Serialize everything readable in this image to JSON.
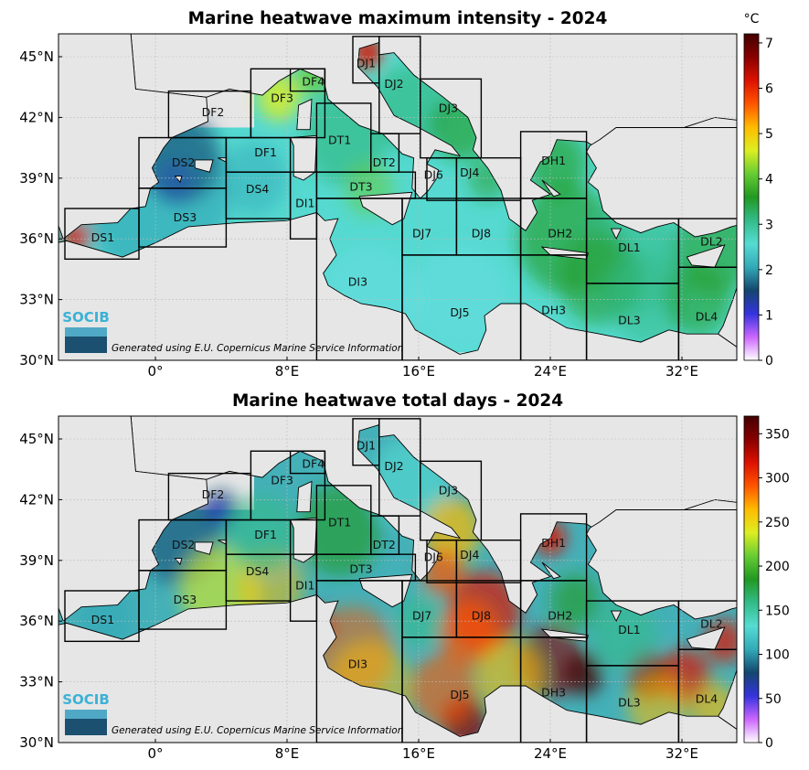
{
  "maps": [
    {
      "title": "Marine heatwave maximum intensity - 2024",
      "unit": "°C",
      "colorbar_ticks": [
        "7",
        "6",
        "5",
        "4",
        "3",
        "2",
        "1",
        "0"
      ],
      "colorbar_range": [
        0,
        7.2
      ],
      "colorbar_stops": [
        "#ffffff",
        "#cc66ff",
        "#3333dd",
        "#14466e",
        "#33aab8",
        "#55dcd2",
        "#33bb88",
        "#229922",
        "#66cc33",
        "#ddee22",
        "#ffbb00",
        "#ff5500",
        "#dd1100",
        "#880000",
        "#440000"
      ],
      "base_sea_color": "#55d9d0",
      "logo_text": "SOCIB",
      "credit": "Generated using E.U. Copernicus Marine Service Information",
      "xticks": [
        "0°",
        "8°E",
        "16°E",
        "24°E",
        "32°E"
      ],
      "yticks": [
        "45°N",
        "42°N",
        "39°N",
        "36°N",
        "33°N",
        "30°N"
      ],
      "regions": [
        "DS1",
        "DS2",
        "DS3",
        "DS4",
        "DF1",
        "DF2",
        "DF3",
        "DF4",
        "DI1",
        "DI3",
        "DT1",
        "DT2",
        "DT3",
        "DJ1",
        "DJ2",
        "DJ3",
        "DJ4",
        "DJ5",
        "DJ6",
        "DJ7",
        "DJ8",
        "DH1",
        "DH2",
        "DH3",
        "DL1",
        "DL2",
        "DL3",
        "DL4"
      ]
    },
    {
      "title": "Marine heatwave total days - 2024",
      "unit": "",
      "colorbar_ticks": [
        "350",
        "300",
        "250",
        "200",
        "150",
        "100",
        "50",
        "0"
      ],
      "colorbar_range": [
        0,
        370
      ],
      "colorbar_stops": [
        "#ffffff",
        "#cc66ff",
        "#3333dd",
        "#14466e",
        "#33aab8",
        "#55dcd2",
        "#33bb88",
        "#229922",
        "#66cc33",
        "#ddee22",
        "#ffbb00",
        "#ff5500",
        "#dd1100",
        "#880000",
        "#440000"
      ],
      "base_sea_color": "#44b0b8",
      "logo_text": "SOCIB",
      "credit": "Generated using E.U. Copernicus Marine Service Information",
      "xticks": [
        "0°",
        "8°E",
        "16°E",
        "24°E",
        "32°E"
      ],
      "yticks": [
        "45°N",
        "42°N",
        "39°N",
        "36°N",
        "33°N",
        "30°N"
      ],
      "regions": [
        "DS1",
        "DS2",
        "DS3",
        "DS4",
        "DF1",
        "DF2",
        "DF3",
        "DF4",
        "DI1",
        "DI3",
        "DT1",
        "DT2",
        "DT3",
        "DJ1",
        "DJ2",
        "DJ3",
        "DJ4",
        "DJ5",
        "DJ6",
        "DJ7",
        "DJ8",
        "DH1",
        "DH2",
        "DH3",
        "DL1",
        "DL2",
        "DL3",
        "DL4"
      ]
    }
  ]
}
